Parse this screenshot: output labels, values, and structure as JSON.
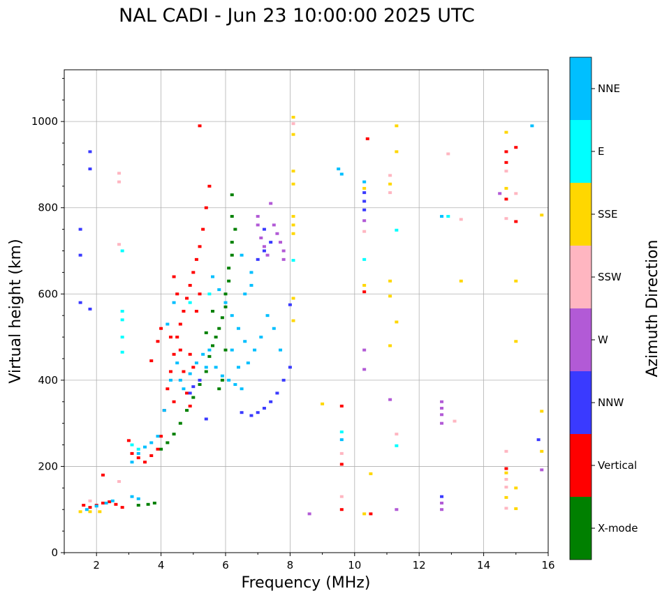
{
  "chart_data": {
    "type": "scatter",
    "subtype": "ionogram",
    "title": "NAL CADI - Jun 23 10:00:00 2025 UTC",
    "xlabel": "Frequency (MHz)",
    "ylabel": "Virtual height (km)",
    "xlim": [
      1,
      16
    ],
    "ylim": [
      0,
      1120
    ],
    "xticks": [
      2,
      4,
      6,
      8,
      10,
      12,
      14,
      16
    ],
    "yticks": [
      0,
      200,
      400,
      600,
      800,
      1000
    ],
    "grid": true,
    "colorbar": {
      "label": "Azimuth Direction",
      "categories": [
        {
          "name": "X-mode",
          "color": "#008000"
        },
        {
          "name": "Vertical",
          "color": "#ff0000"
        },
        {
          "name": "NNW",
          "color": "#3a3aff"
        },
        {
          "name": "W",
          "color": "#b25ad6"
        },
        {
          "name": "SSW",
          "color": "#ffb6c1"
        },
        {
          "name": "SSE",
          "color": "#ffd700"
        },
        {
          "name": "E",
          "color": "#00ffff"
        },
        {
          "name": "NNE",
          "color": "#00bfff"
        }
      ]
    },
    "series": [
      {
        "name": "X-mode",
        "color": "#008000",
        "points": [
          [
            3.3,
            110
          ],
          [
            3.6,
            112
          ],
          [
            3.8,
            115
          ],
          [
            4.0,
            240
          ],
          [
            4.2,
            255
          ],
          [
            4.4,
            275
          ],
          [
            4.6,
            300
          ],
          [
            4.8,
            330
          ],
          [
            5.0,
            360
          ],
          [
            5.2,
            390
          ],
          [
            5.4,
            420
          ],
          [
            5.5,
            455
          ],
          [
            5.6,
            480
          ],
          [
            5.7,
            500
          ],
          [
            5.8,
            520
          ],
          [
            5.9,
            545
          ],
          [
            6.0,
            570
          ],
          [
            6.0,
            600
          ],
          [
            6.1,
            630
          ],
          [
            6.1,
            660
          ],
          [
            6.2,
            690
          ],
          [
            6.2,
            720
          ],
          [
            6.3,
            750
          ],
          [
            6.2,
            780
          ],
          [
            6.2,
            830
          ],
          [
            5.8,
            380
          ],
          [
            5.9,
            400
          ],
          [
            6.0,
            470
          ],
          [
            5.6,
            560
          ],
          [
            5.4,
            510
          ]
        ]
      },
      {
        "name": "Vertical",
        "color": "#ff0000",
        "points": [
          [
            1.6,
            110
          ],
          [
            1.8,
            105
          ],
          [
            2.0,
            110
          ],
          [
            2.2,
            115
          ],
          [
            2.4,
            118
          ],
          [
            2.6,
            112
          ],
          [
            2.8,
            105
          ],
          [
            3.0,
            260
          ],
          [
            3.1,
            230
          ],
          [
            3.3,
            220
          ],
          [
            3.5,
            210
          ],
          [
            3.7,
            225
          ],
          [
            3.9,
            240
          ],
          [
            4.0,
            270
          ],
          [
            4.1,
            330
          ],
          [
            4.2,
            380
          ],
          [
            4.3,
            420
          ],
          [
            4.4,
            460
          ],
          [
            4.5,
            500
          ],
          [
            4.6,
            530
          ],
          [
            4.7,
            560
          ],
          [
            4.8,
            590
          ],
          [
            4.9,
            620
          ],
          [
            5.0,
            650
          ],
          [
            5.1,
            680
          ],
          [
            5.2,
            710
          ],
          [
            5.3,
            750
          ],
          [
            5.4,
            800
          ],
          [
            5.5,
            850
          ],
          [
            5.2,
            990
          ],
          [
            4.4,
            640
          ],
          [
            4.5,
            600
          ],
          [
            4.7,
            420
          ],
          [
            4.8,
            370
          ],
          [
            4.9,
            340
          ],
          [
            3.9,
            490
          ],
          [
            3.7,
            445
          ],
          [
            4.0,
            520
          ],
          [
            5.1,
            560
          ],
          [
            4.3,
            500
          ],
          [
            4.6,
            470
          ],
          [
            4.9,
            460
          ],
          [
            5.0,
            430
          ],
          [
            5.2,
            600
          ],
          [
            4.4,
            350
          ],
          [
            2.2,
            180
          ],
          [
            10.5,
            90
          ],
          [
            10.4,
            960
          ],
          [
            10.3,
            605
          ],
          [
            9.6,
            340
          ],
          [
            9.6,
            205
          ],
          [
            9.6,
            100
          ],
          [
            14.7,
            930
          ],
          [
            14.7,
            905
          ],
          [
            14.7,
            820
          ],
          [
            15.0,
            768
          ],
          [
            15.0,
            940
          ],
          [
            14.7,
            195
          ]
        ]
      },
      {
        "name": "NNW",
        "color": "#3a3aff",
        "points": [
          [
            1.5,
            690
          ],
          [
            1.5,
            750
          ],
          [
            1.5,
            580
          ],
          [
            1.8,
            565
          ],
          [
            1.8,
            890
          ],
          [
            1.8,
            930
          ],
          [
            4.9,
            370
          ],
          [
            5.0,
            385
          ],
          [
            5.2,
            400
          ],
          [
            5.4,
            310
          ],
          [
            6.5,
            325
          ],
          [
            6.8,
            318
          ],
          [
            7.0,
            325
          ],
          [
            7.2,
            335
          ],
          [
            7.4,
            350
          ],
          [
            7.6,
            370
          ],
          [
            7.8,
            400
          ],
          [
            8.0,
            430
          ],
          [
            8.0,
            575
          ],
          [
            10.3,
            795
          ],
          [
            10.3,
            815
          ],
          [
            10.3,
            835
          ],
          [
            12.7,
            130
          ],
          [
            15.7,
            262
          ],
          [
            7.0,
            680
          ],
          [
            7.2,
            700
          ],
          [
            7.4,
            720
          ],
          [
            7.2,
            750
          ]
        ]
      },
      {
        "name": "W",
        "color": "#b25ad6",
        "points": [
          [
            12.7,
            300
          ],
          [
            12.7,
            320
          ],
          [
            12.7,
            335
          ],
          [
            12.7,
            350
          ],
          [
            12.7,
            100
          ],
          [
            12.7,
            115
          ],
          [
            7.0,
            760
          ],
          [
            7.1,
            730
          ],
          [
            7.2,
            710
          ],
          [
            7.3,
            690
          ],
          [
            7.4,
            810
          ],
          [
            7.5,
            760
          ],
          [
            7.6,
            740
          ],
          [
            7.7,
            720
          ],
          [
            7.8,
            700
          ],
          [
            7.0,
            780
          ],
          [
            7.8,
            680
          ],
          [
            10.3,
            770
          ],
          [
            10.3,
            470
          ],
          [
            10.3,
            425
          ],
          [
            11.1,
            355
          ],
          [
            8.6,
            90
          ],
          [
            11.3,
            100
          ],
          [
            14.5,
            833
          ],
          [
            15.8,
            192
          ]
        ]
      },
      {
        "name": "SSW",
        "color": "#ffb6c1",
        "points": [
          [
            2.7,
            165
          ],
          [
            2.7,
            860
          ],
          [
            2.7,
            880
          ],
          [
            2.7,
            715
          ],
          [
            1.8,
            120
          ],
          [
            9.6,
            130
          ],
          [
            9.6,
            230
          ],
          [
            10.3,
            745
          ],
          [
            11.1,
            875
          ],
          [
            11.1,
            835
          ],
          [
            12.9,
            925
          ],
          [
            13.1,
            305
          ],
          [
            13.3,
            773
          ],
          [
            14.7,
            885
          ],
          [
            14.7,
            775
          ],
          [
            14.7,
            235
          ],
          [
            14.7,
            170
          ],
          [
            14.7,
            152
          ],
          [
            14.7,
            103
          ],
          [
            15.0,
            833
          ],
          [
            11.3,
            275
          ],
          [
            8.1,
            995
          ]
        ]
      },
      {
        "name": "SSE",
        "color": "#ffd700",
        "points": [
          [
            1.5,
            95
          ],
          [
            1.8,
            95
          ],
          [
            2.1,
            95
          ],
          [
            8.1,
            1010
          ],
          [
            8.1,
            970
          ],
          [
            8.1,
            885
          ],
          [
            8.1,
            855
          ],
          [
            8.1,
            780
          ],
          [
            8.1,
            760
          ],
          [
            8.1,
            740
          ],
          [
            8.1,
            590
          ],
          [
            8.1,
            538
          ],
          [
            9.0,
            345
          ],
          [
            10.3,
            90
          ],
          [
            10.3,
            620
          ],
          [
            10.3,
            845
          ],
          [
            10.5,
            183
          ],
          [
            11.1,
            630
          ],
          [
            11.1,
            595
          ],
          [
            11.1,
            480
          ],
          [
            11.1,
            855
          ],
          [
            11.3,
            930
          ],
          [
            11.3,
            535
          ],
          [
            11.3,
            990
          ],
          [
            13.3,
            630
          ],
          [
            14.7,
            975
          ],
          [
            14.7,
            845
          ],
          [
            14.7,
            185
          ],
          [
            14.7,
            128
          ],
          [
            15.0,
            630
          ],
          [
            15.0,
            490
          ],
          [
            15.0,
            150
          ],
          [
            15.0,
            102
          ],
          [
            15.8,
            783
          ],
          [
            15.8,
            328
          ],
          [
            15.8,
            235
          ]
        ]
      },
      {
        "name": "E",
        "color": "#00ffff",
        "points": [
          [
            2.8,
            560
          ],
          [
            2.8,
            540
          ],
          [
            2.8,
            500
          ],
          [
            2.8,
            465
          ],
          [
            2.8,
            700
          ],
          [
            3.1,
            250
          ],
          [
            3.3,
            240
          ],
          [
            9.6,
            280
          ],
          [
            10.3,
            680
          ],
          [
            11.3,
            748
          ],
          [
            11.3,
            248
          ],
          [
            12.9,
            780
          ],
          [
            8.1,
            678
          ],
          [
            4.9,
            580
          ],
          [
            5.5,
            600
          ]
        ]
      },
      {
        "name": "NNE",
        "color": "#00bfff",
        "points": [
          [
            1.7,
            100
          ],
          [
            2.0,
            108
          ],
          [
            2.3,
            115
          ],
          [
            2.5,
            120
          ],
          [
            3.1,
            130
          ],
          [
            3.3,
            125
          ],
          [
            3.1,
            210
          ],
          [
            3.3,
            230
          ],
          [
            3.5,
            245
          ],
          [
            3.7,
            255
          ],
          [
            3.9,
            270
          ],
          [
            4.1,
            330
          ],
          [
            4.3,
            400
          ],
          [
            4.5,
            440
          ],
          [
            4.6,
            400
          ],
          [
            4.7,
            380
          ],
          [
            4.9,
            415
          ],
          [
            5.1,
            440
          ],
          [
            5.3,
            460
          ],
          [
            5.5,
            470
          ],
          [
            5.7,
            430
          ],
          [
            5.9,
            410
          ],
          [
            6.1,
            400
          ],
          [
            6.3,
            390
          ],
          [
            6.5,
            380
          ],
          [
            6.7,
            440
          ],
          [
            6.9,
            470
          ],
          [
            7.1,
            500
          ],
          [
            7.3,
            550
          ],
          [
            7.5,
            520
          ],
          [
            7.7,
            470
          ],
          [
            5.6,
            640
          ],
          [
            5.8,
            610
          ],
          [
            6.0,
            580
          ],
          [
            6.2,
            550
          ],
          [
            6.4,
            520
          ],
          [
            6.6,
            490
          ],
          [
            6.8,
            620
          ],
          [
            6.5,
            690
          ],
          [
            6.8,
            650
          ],
          [
            9.6,
            262
          ],
          [
            10.3,
            860
          ],
          [
            9.5,
            890
          ],
          [
            9.6,
            878
          ],
          [
            15.5,
            990
          ],
          [
            12.7,
            780
          ],
          [
            4.4,
            580
          ],
          [
            4.2,
            530
          ],
          [
            6.2,
            470
          ],
          [
            6.4,
            430
          ],
          [
            6.6,
            600
          ],
          [
            5.4,
            430
          ]
        ]
      }
    ]
  }
}
